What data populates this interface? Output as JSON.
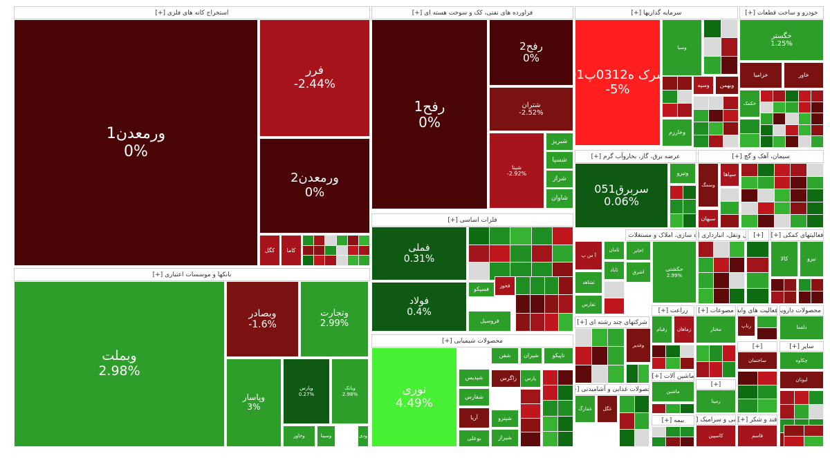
{
  "colors": {
    "dark_red": "#4a0606",
    "red": "#a8141b",
    "mid_red": "#7a1212",
    "bright_red": "#ff1f1f",
    "dark_green": "#0e5a12",
    "green": "#2e9e2a",
    "bright_green": "#48f034"
  },
  "chart_data": {
    "type": "treemap",
    "title": "",
    "sectors": [
      {
        "name": "استخراج کانه های فلزی [+]",
        "tiles": [
          {
            "name": "ورمعدن1",
            "value": 0
          },
          {
            "name": "فرر",
            "value": -2.44
          },
          {
            "name": "ورمعدن2",
            "value": 0
          },
          {
            "name": "کاما",
            "value": null
          },
          {
            "name": "کگل",
            "value": null
          }
        ]
      },
      {
        "name": "فراورده های نفتی، کک و سوخت هسته ای [+]",
        "tiles": [
          {
            "name": "رفح1",
            "value": 0
          },
          {
            "name": "رفح2",
            "value": 0
          },
          {
            "name": "شتران",
            "value": -2.52
          },
          {
            "name": "شپنا",
            "value": -2.92
          },
          {
            "name": "شبریز",
            "value": null
          },
          {
            "name": "شسپا",
            "value": null
          },
          {
            "name": "شراز",
            "value": null
          },
          {
            "name": "شاوان",
            "value": null
          }
        ]
      },
      {
        "name": "سرمایه گذاریها [+]",
        "tiles": [
          {
            "name": "سرک ه0312پ01",
            "value": -5
          },
          {
            "name": "وسپا",
            "value": null
          },
          {
            "name": "وبهمن",
            "value": null
          },
          {
            "name": "وسپه",
            "value": null
          },
          {
            "name": "وخارزم",
            "value": null
          }
        ]
      },
      {
        "name": "خودرو و ساخت قطعات [+]",
        "tiles": [
          {
            "name": "خگستر",
            "value": 1.25
          },
          {
            "name": "خزامیا",
            "value": null
          },
          {
            "name": "خاور",
            "value": null
          },
          {
            "name": "خکمک",
            "value": null
          }
        ]
      },
      {
        "name": "عرضه برق، گاز، بخاروآب گرم [+]",
        "tiles": [
          {
            "name": "سربرق051",
            "value": 0.06
          },
          {
            "name": "وتیرو",
            "value": null
          }
        ]
      },
      {
        "name": "سیمان، آهک و گچ [+]",
        "tiles": [
          {
            "name": "سپاها",
            "value": null
          },
          {
            "name": "سبهان",
            "value": null
          }
        ]
      },
      {
        "name": "فلزات اساسی [+]",
        "tiles": [
          {
            "name": "فملی",
            "value": 0.31
          },
          {
            "name": "فولاد",
            "value": 0.4
          },
          {
            "name": "فسپکو",
            "value": null
          },
          {
            "name": "فخوز",
            "value": null
          },
          {
            "name": "فروسیل",
            "value": null
          }
        ]
      },
      {
        "name": "بانکها و موسسات اعتباری [+]",
        "tiles": [
          {
            "name": "وبملت",
            "value": 2.98
          },
          {
            "name": "وبصادر",
            "value": -1.6
          },
          {
            "name": "وتجارت",
            "value": 2.99
          },
          {
            "name": "وپاسار",
            "value": 3
          },
          {
            "name": "وپارس",
            "value": 0.27
          },
          {
            "name": "وبانک",
            "value": 2.98
          },
          {
            "name": "ودی",
            "value": null
          },
          {
            "name": "وسینا",
            "value": null
          },
          {
            "name": "وخاور",
            "value": null
          }
        ]
      },
      {
        "name": "محصولات شیمیایی [+]",
        "tiles": [
          {
            "name": "نوری",
            "value": 4.49
          },
          {
            "name": "شفن",
            "value": null
          },
          {
            "name": "شیران",
            "value": null
          },
          {
            "name": "تاپیکو",
            "value": null
          },
          {
            "name": "زاگرس",
            "value": null
          },
          {
            "name": "شفارس",
            "value": null
          },
          {
            "name": "شپدیس",
            "value": null
          },
          {
            "name": "آریا",
            "value": null
          },
          {
            "name": "شپترو",
            "value": null
          },
          {
            "name": "بوعلی",
            "value": null
          },
          {
            "name": "شیراز",
            "value": null
          },
          {
            "name": "پارس",
            "value": null
          }
        ]
      },
      {
        "name": "انبوه سازی، املاک و مستغلات [+]",
        "tiles": [
          {
            "name": "آ س پ",
            "value": null
          },
          {
            "name": "ثامان",
            "value": null
          },
          {
            "name": "ثاباد",
            "value": null
          },
          {
            "name": "ثشاهد",
            "value": null
          },
          {
            "name": "ثفارس",
            "value": null
          }
        ]
      },
      {
        "name": "حمل ونقل، انبارداری [+]",
        "tiles": [
          {
            "name": "حکشتی",
            "value": 2.99
          },
          {
            "name": "اخابر",
            "value": null
          },
          {
            "name": "اشرق",
            "value": null
          }
        ]
      },
      {
        "name": "شرکتهای چند رشته ای [+]",
        "tiles": [
          {
            "name": "وغدیر",
            "value": null
          },
          {
            "name": "وسمگ",
            "value": null
          }
        ]
      },
      {
        "name": "زراعت [+]",
        "tiles": [
          {
            "name": "زقیام",
            "value": null
          },
          {
            "name": "زماهان",
            "value": null
          }
        ]
      },
      {
        "name": "مصوعات [+]",
        "tiles": [
          {
            "name": "مختار",
            "value": null
          }
        ]
      },
      {
        "name": "رایانه و فعالیت های وابسته [+]",
        "tiles": [
          {
            "name": "رتاپ",
            "value": null
          }
        ]
      },
      {
        "name": "محصولات غذایی و آشامیدنی [+]",
        "tiles": [
          {
            "name": "غمارگ",
            "value": null
          },
          {
            "name": "غگل",
            "value": null
          }
        ]
      },
      {
        "name": "ماشین آلات [+]",
        "tiles": [
          {
            "name": "ماشین",
            "value": null
          }
        ]
      },
      {
        "name": "بیمه [+]",
        "tiles": [
          {
            "name": "رمپنا",
            "value": null
          }
        ]
      },
      {
        "name": "مواد و محصولات دارویی [+]",
        "tiles": [
          {
            "name": "دلقما",
            "value": null
          }
        ]
      },
      {
        "name": "فعالیتهای کمکی [+]",
        "tiles": [
          {
            "name": "کالا",
            "value": null
          },
          {
            "name": "نیرو",
            "value": null
          }
        ]
      },
      {
        "name": "قند و شکر [+]",
        "tiles": [
          {
            "name": "قاسم",
            "value": null
          }
        ]
      },
      {
        "name": "کاشی و سرامیک [+]",
        "tiles": [
          {
            "name": "کاسپین",
            "value": null
          }
        ]
      },
      {
        "name": "سایر [+]",
        "tiles": [
          {
            "name": "چکاوه",
            "value": null
          },
          {
            "name": "ساختمان",
            "value": null
          },
          {
            "name": "لبوتان",
            "value": null
          }
        ]
      }
    ]
  },
  "headers": {
    "mining": "استخراج کانه های فلزی [+]",
    "oil": "فراورده های نفتی، کک و سوخت هسته ای [+]",
    "invest": "سرمایه گذاریها [+]",
    "auto": "خودرو و ساخت قطعات [+]",
    "power": "عرضه برق، گاز، بخاروآب گرم [+]",
    "cement": "سیمان، آهک و گچ [+]",
    "metals": "فلزات اساسی [+]",
    "banks": "بانکها و موسسات اعتباری [+]",
    "chem": "محصولات شیمیایی [+]",
    "realestate": "انبوه سازی، املاک و مستغلات [+]",
    "transport": "حمل ونقل، انبارداری [+]",
    "multi": "شرکتهای چند رشته ای [+]",
    "farm": "زراعت [+]",
    "textile": "مصوعات [+]",
    "computer": "رایانه و فعالیت های وابسته [+]",
    "food": "محصولات غذایی و آشامیدنی [+]",
    "machine": "ماشین آلات [+]",
    "insurance": "بیمه [+]",
    "pharma": "مواد و محصولات دارویی [+]",
    "aux": "فعالیتهای کمکی [+]",
    "sugar": "قند و شکر [+]",
    "tile": "کاشی و سرامیک [+]",
    "other": "سایر [+]",
    "misc1": "[+]",
    "misc2": "[+]",
    "misc3": "[+]"
  }
}
